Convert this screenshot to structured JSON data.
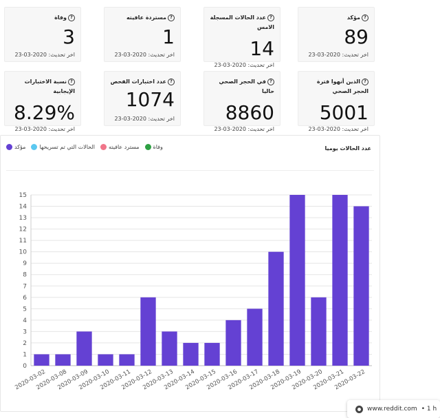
{
  "cards": [
    {
      "title": "مؤكد",
      "value": "89",
      "updated": "اخر تحديث: 2020-03-23"
    },
    {
      "title": "عدد الحالات المسجلة الامس",
      "value": "14",
      "updated": "اخر تحديث: 2020-03-23"
    },
    {
      "title": "مستردة عافيته",
      "value": "1",
      "updated": "اخر تحديث: 2020-03-23"
    },
    {
      "title": "وفاة",
      "value": "3",
      "updated": "اخر تحديث: 2020-03-23"
    },
    {
      "title": "الذين أنهوا فترة الحجر الصحي",
      "value": "5001",
      "updated": "اخر تحديث: 2020-03-23"
    },
    {
      "title": "في الحجر الصحي حاليا",
      "value": "8860",
      "updated": "اخر تحديث: 2020-03-23"
    },
    {
      "title": "عدد اختبارات الفحص",
      "value": "1074",
      "updated": "اخر تحديث: 2020-03-23"
    },
    {
      "title": "نسبة الاختبارات الإيجابية",
      "value": "8.29%",
      "updated": "اخر تحديث: 2020-03-23"
    }
  ],
  "chart_panel": {
    "title": "عدد الحالات يوميا",
    "legend": [
      {
        "label": "مؤكد",
        "color": "#6441d3"
      },
      {
        "label": "الحالات التي تم تسريحها",
        "color": "#5bc8f0"
      },
      {
        "label": "مسترد عافيته",
        "color": "#f07589"
      },
      {
        "label": "وفاة",
        "color": "#2ea043"
      }
    ]
  },
  "chart_data": {
    "type": "bar",
    "title": "عدد الحالات يوميا",
    "categories": [
      "2020-03-02",
      "2020-03-08",
      "2020-03-09",
      "2020-03-10",
      "2020-03-11",
      "2020-03-12",
      "2020-03-13",
      "2020-03-14",
      "2020-03-15",
      "2020-03-16",
      "2020-03-17",
      "2020-03-18",
      "2020-03-19",
      "2020-03-20",
      "2020-03-21",
      "2020-03-22"
    ],
    "series": [
      {
        "name": "مؤكد",
        "values": [
          1,
          1,
          3,
          1,
          1,
          6,
          3,
          2,
          2,
          4,
          5,
          10,
          15,
          6,
          15,
          14
        ]
      }
    ],
    "ylim": [
      0,
      15
    ],
    "yticks": [
      0,
      1,
      2,
      3,
      4,
      5,
      6,
      7,
      8,
      9,
      10,
      11,
      12,
      13,
      14,
      15
    ],
    "bar_color": "#6441d3",
    "grid": true
  },
  "browser_chip": {
    "domain": "www.reddit.com",
    "suffix": "• 1 h"
  }
}
